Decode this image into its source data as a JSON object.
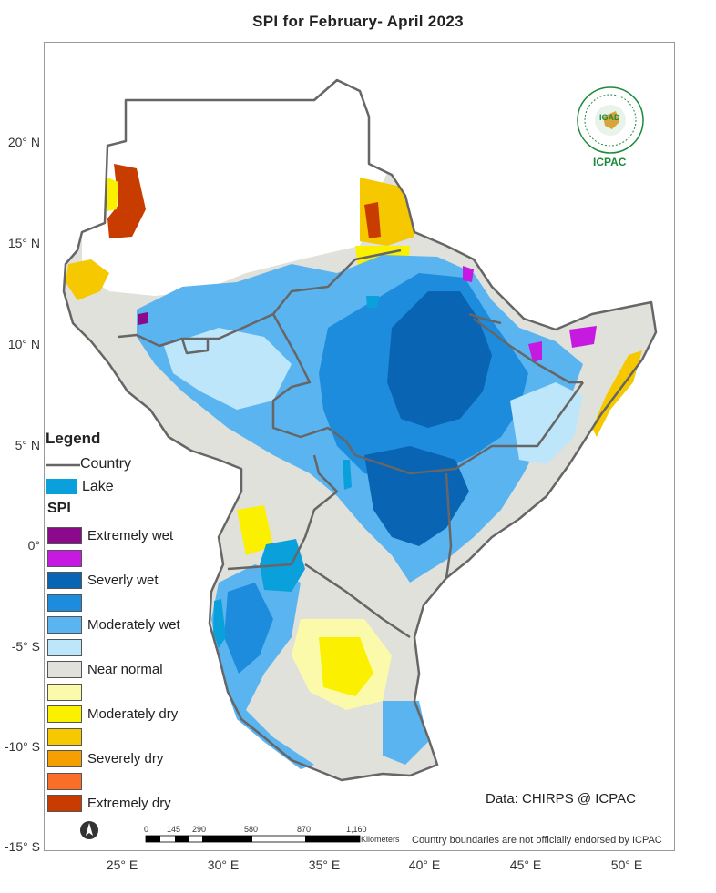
{
  "title": "SPI   for  February- April 2023",
  "latitude_labels": [
    "20° N",
    "15° N",
    "10° N",
    "5° N",
    "0°",
    "-5° S",
    "-10° S",
    "-15° S"
  ],
  "longitude_labels": [
    "25° E",
    "30° E",
    "35° E",
    "40° E",
    "45° E",
    "50° E"
  ],
  "legend": {
    "heading": "Legend",
    "country_label": "Country",
    "lake_label": "Lake",
    "spi_heading": "SPI",
    "classes": [
      {
        "label": "Extremely wet",
        "color": "#8B0A8B"
      },
      {
        "label": "",
        "color": "#C71AE0"
      },
      {
        "label": "Severly wet",
        "color": "#0A64B4"
      },
      {
        "label": "",
        "color": "#1E8CDC"
      },
      {
        "label": "Moderately wet",
        "color": "#5AB4F0"
      },
      {
        "label": "",
        "color": "#BEE6FA"
      },
      {
        "label": "Near normal",
        "color": "#E1E1DC"
      },
      {
        "label": "",
        "color": "#FAFAAA"
      },
      {
        "label": "Moderately dry",
        "color": "#FAF000"
      },
      {
        "label": "",
        "color": "#F5C800"
      },
      {
        "label": "Severely dry",
        "color": "#F5A000"
      },
      {
        "label": "",
        "color": "#FA6E28"
      },
      {
        "label": "Extremely dry",
        "color": "#C83C00"
      }
    ],
    "country_color": "#666666",
    "lake_color": "#0AA0DC"
  },
  "credit": "Data: CHIRPS @ ICPAC",
  "disclaimer": "Country boundaries are not officially endorsed by ICPAC",
  "scale_bar": {
    "ticks": [
      "0",
      "145",
      "290",
      "580",
      "870",
      "1,160"
    ],
    "unit": "Kilometers"
  },
  "logo": {
    "top_text": "IGAD",
    "bottom_text": "ICPAC"
  },
  "north_arrow_icon": "north-arrow-icon"
}
